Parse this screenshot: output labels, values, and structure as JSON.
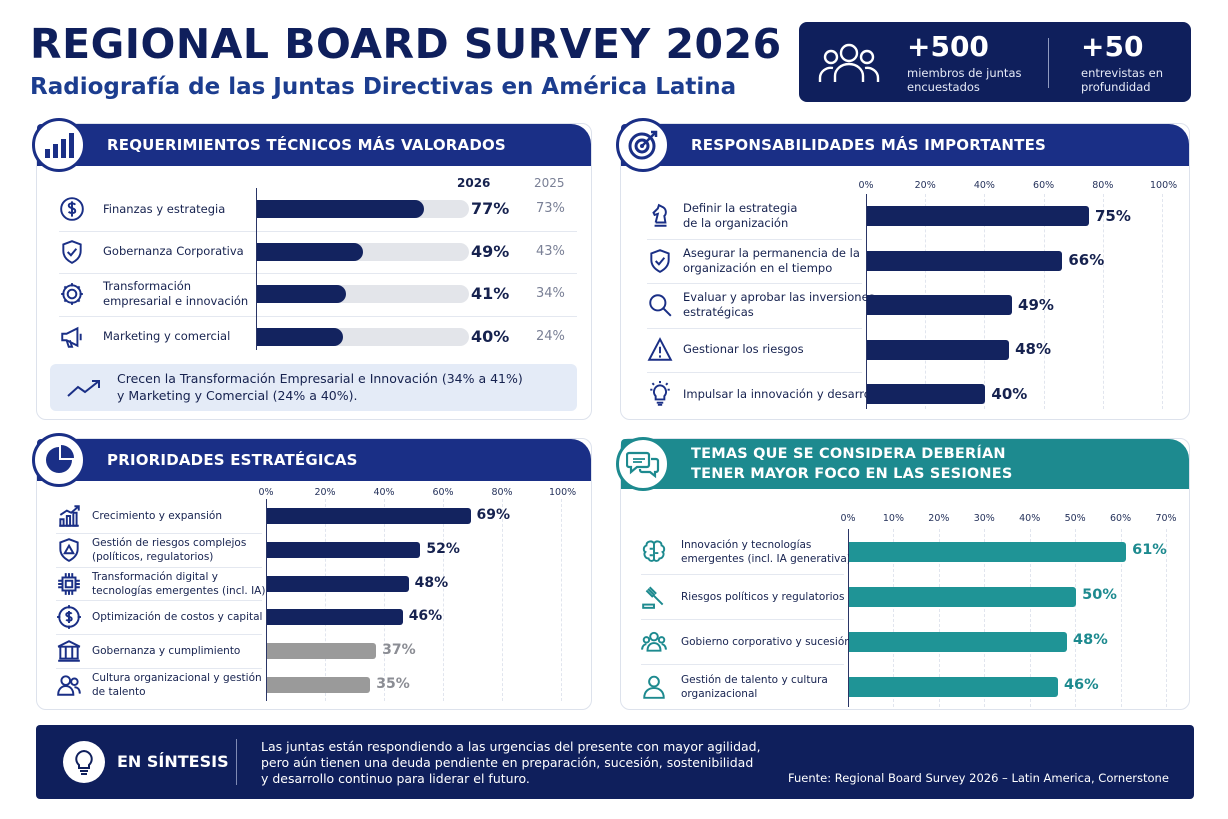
{
  "header": {
    "title": "REGIONAL BOARD SURVEY 2026",
    "subtitle": "Radiografía de las Juntas Directivas en América Latina",
    "stats": [
      {
        "value": "+500",
        "label_line1": "miembros de juntas",
        "label_line2": "encuestados"
      },
      {
        "value": "+50",
        "label_line1": "entrevistas en",
        "label_line2": "profundidad"
      }
    ]
  },
  "tech": {
    "title": "REQUERIMIENTOS TÉCNICOS MÁS VALORADOS",
    "col_2026": "2026",
    "col_2025": "2025",
    "rows": [
      {
        "label_lines": [
          "Finanzas y estrategia"
        ],
        "icon": "dollar-icon",
        "v2026": "77%",
        "v2025": "73%"
      },
      {
        "label_lines": [
          "Gobernanza Corporativa"
        ],
        "icon": "shield-check-icon",
        "v2026": "49%",
        "v2025": "43%"
      },
      {
        "label_lines": [
          "Transformación",
          "empresarial e innovación"
        ],
        "icon": "gear-icon",
        "v2026": "41%",
        "v2025": "34%"
      },
      {
        "label_lines": [
          "Marketing y comercial"
        ],
        "icon": "megaphone-icon",
        "v2026": "40%",
        "v2025": "24%"
      }
    ],
    "callout_line1": "Crecen la Transformación Empresarial e Innovación (34% a 41%)",
    "callout_line2": "y Marketing y Comercial (24% a 40%)."
  },
  "resp": {
    "title": "RESPONSABILIDADES MÁS IMPORTANTES",
    "rows": [
      {
        "label_lines": [
          "Definir la estrategia",
          "de la organización"
        ],
        "icon": "chess-knight-icon",
        "pct": "75%"
      },
      {
        "label_lines": [
          "Asegurar la permanencia de la",
          "organización en el tiempo"
        ],
        "icon": "shield-check-icon",
        "pct": "66%"
      },
      {
        "label_lines": [
          "Evaluar y aprobar las inversiones",
          "estratégicas"
        ],
        "icon": "magnifier-icon",
        "pct": "49%"
      },
      {
        "label_lines": [
          "Gestionar los riesgos"
        ],
        "icon": "warning-icon",
        "pct": "48%"
      },
      {
        "label_lines": [
          "Impulsar la innovación y desarrollo"
        ],
        "icon": "lightbulb-icon",
        "pct": "40%"
      }
    ]
  },
  "prio": {
    "title": "PRIORIDADES ESTRATÉGICAS",
    "rows": [
      {
        "label_lines": [
          "Crecimiento y expansión"
        ],
        "icon": "growth-chart-icon",
        "pct": "69%"
      },
      {
        "label_lines": [
          "Gestión de riesgos complejos",
          "(políticos, regulatorios)"
        ],
        "icon": "alert-shield-icon",
        "pct": "52%"
      },
      {
        "label_lines": [
          "Transformación digital y",
          "tecnologías emergentes (incl. IA)"
        ],
        "icon": "chip-icon",
        "pct": "48%"
      },
      {
        "label_lines": [
          "Optimización de costos y capital"
        ],
        "icon": "dollar-gear-icon",
        "pct": "46%"
      },
      {
        "label_lines": [
          "Gobernanza y cumplimiento"
        ],
        "icon": "institution-icon",
        "pct": "37%"
      },
      {
        "label_lines": [
          "Cultura organizacional y gestión",
          "de talento"
        ],
        "icon": "people-icon",
        "pct": "35%"
      }
    ]
  },
  "topics": {
    "title_line1": "TEMAS QUE SE CONSIDERA DEBERÍAN",
    "title_line2": "TENER MAYOR FOCO EN LAS SESIONES",
    "rows": [
      {
        "label_lines": [
          "Innovación y tecnologías",
          "emergentes (incl. IA generativa)"
        ],
        "icon": "brain-icon",
        "pct": "61%"
      },
      {
        "label_lines": [
          "Riesgos políticos y regulatorios"
        ],
        "icon": "gavel-icon",
        "pct": "50%"
      },
      {
        "label_lines": [
          "Gobierno corporativo y sucesión"
        ],
        "icon": "group-icon",
        "pct": "48%"
      },
      {
        "label_lines": [
          "Gestión de talento y cultura",
          "organizacional"
        ],
        "icon": "person-icon",
        "pct": "46%"
      }
    ]
  },
  "footer": {
    "heading": "EN SÍNTESIS",
    "text_line1": "Las juntas están respondiendo a las urgencias del presente con mayor agilidad,",
    "text_line2": "pero aún tienen una deuda pendiente en preparación, sucesión, sostenibilidad",
    "text_line3": "y desarrollo continuo para liderar el futuro.",
    "source": "Fuente: Regional Board Survey 2026 – Latin America, Cornerstone"
  },
  "colors": {
    "navy": "#0f1f5c",
    "bar_navy": "#13235f",
    "teal": "#1d8a8f",
    "bar_teal": "#1f9496",
    "gray_bar": "#9a9a9a",
    "track": "#e3e5ea"
  },
  "chart_data": [
    {
      "type": "bar",
      "title": "REQUERIMIENTOS TÉCNICOS MÁS VALORADOS",
      "categories": [
        "Finanzas y estrategia",
        "Gobernanza Corporativa",
        "Transformación empresarial e innovación",
        "Marketing y comercial"
      ],
      "series": [
        {
          "name": "2026",
          "values": [
            77,
            49,
            41,
            40
          ]
        },
        {
          "name": "2025",
          "values": [
            73,
            43,
            34,
            24
          ]
        }
      ],
      "ylim": [
        0,
        100
      ]
    },
    {
      "type": "bar",
      "title": "RESPONSABILIDADES MÁS IMPORTANTES",
      "categories": [
        "Definir la estrategia de la organización",
        "Asegurar la permanencia de la organización en el tiempo",
        "Evaluar y aprobar las inversiones estratégicas",
        "Gestionar los riesgos",
        "Impulsar la innovación y desarrollo"
      ],
      "values": [
        75,
        66,
        49,
        48,
        40
      ],
      "xlim": [
        0,
        100
      ],
      "ticks": [
        "0%",
        "20%",
        "40%",
        "60%",
        "80%",
        "100%"
      ]
    },
    {
      "type": "bar",
      "title": "PRIORIDADES ESTRATÉGICAS",
      "categories": [
        "Crecimiento y expansión",
        "Gestión de riesgos complejos (políticos, regulatorios)",
        "Transformación digital y tecnologías emergentes (incl. IA)",
        "Optimización de costos y capital",
        "Gobernanza y cumplimiento",
        "Cultura organizacional y gestión de talento"
      ],
      "values": [
        69,
        52,
        48,
        46,
        37,
        35
      ],
      "xlim": [
        0,
        100
      ],
      "ticks": [
        "0%",
        "20%",
        "40%",
        "60%",
        "80%",
        "100%"
      ]
    },
    {
      "type": "bar",
      "title": "TEMAS QUE SE CONSIDERA DEBERÍAN TENER MAYOR FOCO EN LAS SESIONES",
      "categories": [
        "Innovación y tecnologías emergentes (incl. IA generativa)",
        "Riesgos políticos y regulatorios",
        "Gobierno corporativo y sucesión",
        "Gestión de talento y cultura organizacional"
      ],
      "values": [
        61,
        50,
        48,
        46
      ],
      "xlim": [
        0,
        70
      ],
      "ticks": [
        "0%",
        "10%",
        "20%",
        "30%",
        "40%",
        "50%",
        "60%",
        "70%"
      ]
    }
  ]
}
